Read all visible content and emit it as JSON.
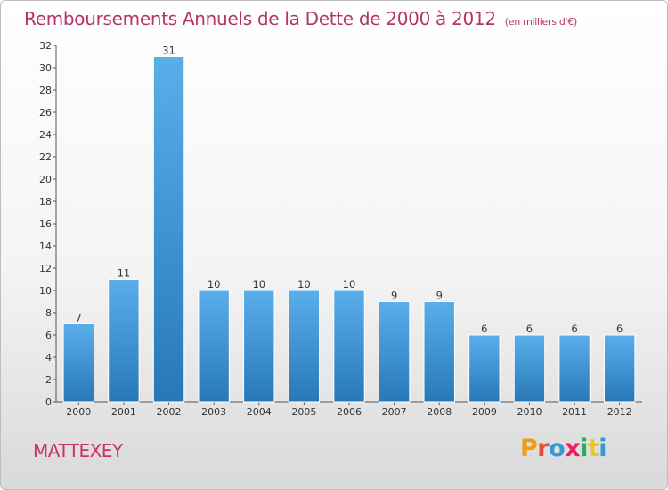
{
  "header": {
    "title": "Remboursements Annuels de la Dette de 2000 à 2012",
    "unit": "(en milliers d'€)"
  },
  "footer": {
    "commune": "MATTEXEY",
    "logo": [
      "P",
      "r",
      "o",
      "x",
      "i",
      "t",
      "i"
    ]
  },
  "colors": {
    "title": "#b5336a",
    "bar_light": "#5aaeea",
    "bar_dark": "#2878b8",
    "logo": [
      "#f39c12",
      "#e74c3c",
      "#3498db",
      "#e91e63",
      "#27ae60",
      "#f1c40f",
      "#3498db"
    ]
  },
  "chart_data": {
    "type": "bar",
    "categories": [
      "2000",
      "2001",
      "2002",
      "2003",
      "2004",
      "2005",
      "2006",
      "2007",
      "2008",
      "2009",
      "2010",
      "2011",
      "2012"
    ],
    "values": [
      7,
      11,
      31,
      10,
      10,
      10,
      10,
      9,
      9,
      6,
      6,
      6,
      6
    ],
    "title": "Remboursements Annuels de la Dette de 2000 à 2012",
    "xlabel": "",
    "ylabel": "",
    "ylim": [
      0,
      32
    ],
    "yticks": [
      0,
      2,
      4,
      6,
      8,
      10,
      12,
      14,
      16,
      18,
      20,
      22,
      24,
      26,
      28,
      30,
      32
    ],
    "grid": false
  }
}
